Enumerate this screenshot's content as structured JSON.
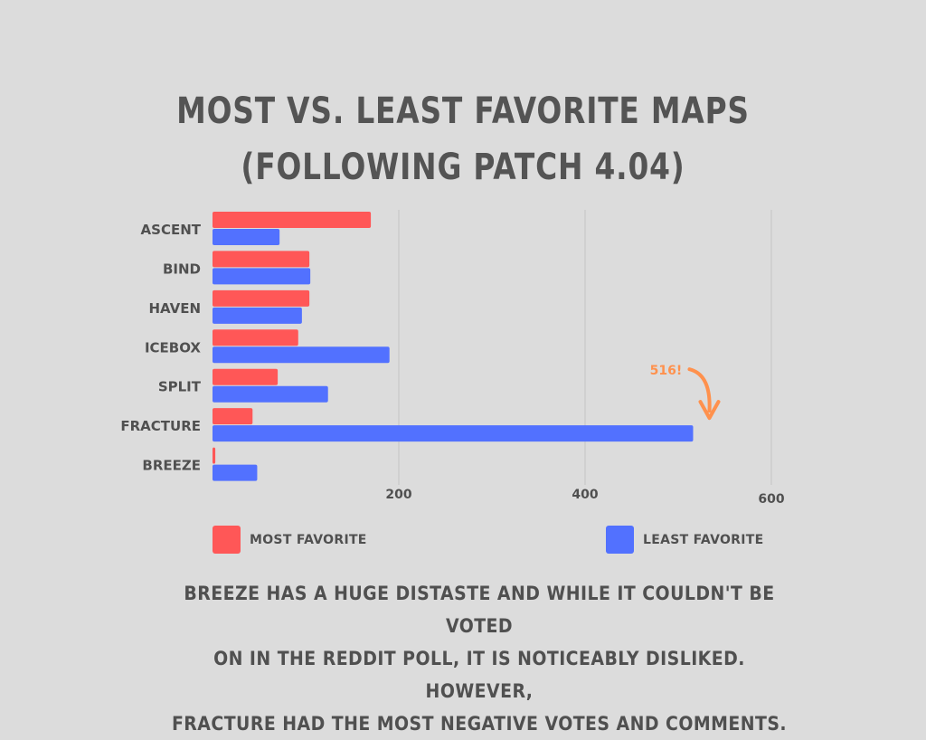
{
  "title_line1": "MOST VS. LEAST FAVORITE MAPS",
  "title_line2": "(FOLLOWING PATCH 4.04)",
  "chart_data": {
    "type": "bar",
    "orientation": "horizontal",
    "categories": [
      "ASCENT",
      "BIND",
      "HAVEN",
      "ICEBOX",
      "SPLIT",
      "FRACTURE",
      "BREEZE"
    ],
    "series": [
      {
        "name": "MOST FAVORITE",
        "color": "#ff5757",
        "values": [
          170,
          104,
          104,
          92,
          70,
          43,
          3
        ]
      },
      {
        "name": "LEAST FAVORITE",
        "color": "#5271ff",
        "values": [
          72,
          105,
          96,
          190,
          124,
          516,
          48
        ]
      }
    ],
    "x_ticks": [
      "200",
      "400",
      "600"
    ],
    "xlim": [
      0,
      600
    ],
    "grid": true,
    "legend_position": "bottom",
    "annotation": {
      "text": "516!",
      "category": "FRACTURE",
      "series": "LEAST FAVORITE",
      "color": "#ff914d"
    }
  },
  "legend": {
    "most_label": "MOST FAVORITE",
    "least_label": "LEAST FAVORITE"
  },
  "caption": {
    "line1": "BREEZE HAS A HUGE DISTASTE AND WHILE IT COULDN'T BE VOTED",
    "line2": "ON IN THE REDDIT POLL, IT IS NOTICEABLY DISLIKED. HOWEVER,",
    "line3": "FRACTURE HAD THE MOST NEGATIVE VOTES AND COMMENTS."
  }
}
